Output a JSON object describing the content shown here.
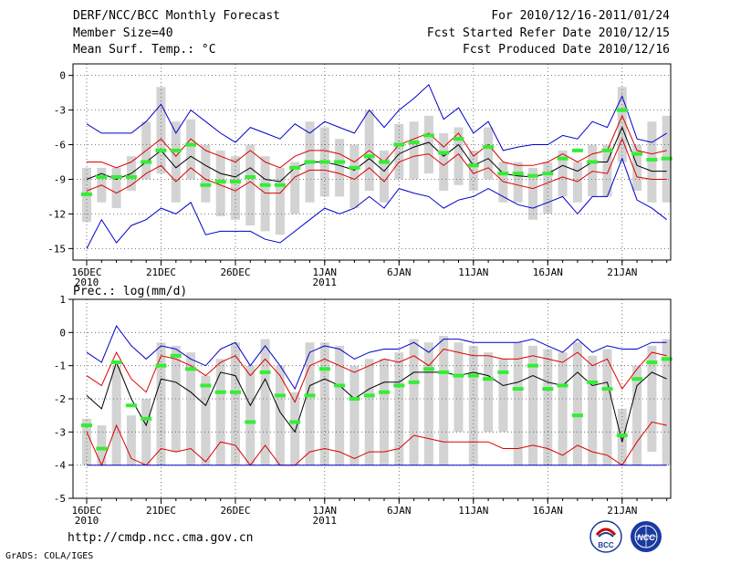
{
  "header": {
    "title": "DERF/NCC/BCC Monthly Forecast",
    "member_size": "Member Size=40",
    "variable": "Mean Surf. Temp.: °C",
    "period": "For 2010/12/16-2011/01/24",
    "fcst_started": "Fcst Started Refer Date 2010/12/15",
    "fcst_produced": "Fcst Produced Date 2010/12/16"
  },
  "footer": {
    "url": "http://cmdp.ncc.cma.gov.cn",
    "grads": "GrADS: COLA/IGES",
    "logo_bcc": "BCC",
    "logo_ncc": "NCC"
  },
  "colors": {
    "median": "#000000",
    "quartile": "#dd0000",
    "extreme": "#0000cc",
    "box": "#d3d3d3",
    "obs": "#33ee33"
  },
  "chart_data": [
    {
      "type": "line",
      "title": "Mean Surf. Temp.: °C",
      "ylabel": "°C",
      "ylim": [
        -16,
        1
      ],
      "yticks": [
        0,
        -3,
        -6,
        -9,
        -12,
        -15
      ],
      "x_tick_labels": [
        {
          "day": 1,
          "label": "16DEC",
          "sub": "2010"
        },
        {
          "day": 6,
          "label": "21DEC",
          "sub": ""
        },
        {
          "day": 11,
          "label": "26DEC",
          "sub": ""
        },
        {
          "day": 17,
          "label": "1JAN",
          "sub": "2011"
        },
        {
          "day": 22,
          "label": "6JAN",
          "sub": ""
        },
        {
          "day": 27,
          "label": "11JAN",
          "sub": ""
        },
        {
          "day": 32,
          "label": "16JAN",
          "sub": ""
        },
        {
          "day": 37,
          "label": "21JAN",
          "sub": ""
        }
      ],
      "days": 40,
      "series": [
        {
          "name": "max",
          "color": "#0000cc",
          "values": [
            -4.2,
            -5.0,
            -5.0,
            -5.0,
            -4.0,
            -2.5,
            -5.0,
            -3.0,
            -4.0,
            -5.0,
            -5.8,
            -4.5,
            -5.0,
            -5.5,
            -4.2,
            -5.0,
            -4.0,
            -4.5,
            -5.0,
            -3.0,
            -4.5,
            -3.0,
            -2.0,
            -0.8,
            -3.8,
            -2.8,
            -5.0,
            -4.0,
            -6.5,
            -6.2,
            -6.0,
            -6.0,
            -5.2,
            -5.5,
            -4.0,
            -4.5,
            -1.8,
            -5.5,
            -5.8,
            -5.0
          ]
        },
        {
          "name": "upper_quartile",
          "color": "#dd0000",
          "values": [
            -7.5,
            -7.5,
            -8.0,
            -7.5,
            -6.5,
            -5.5,
            -7.0,
            -5.5,
            -6.5,
            -7.0,
            -7.5,
            -6.5,
            -7.5,
            -8.0,
            -7.0,
            -6.5,
            -6.5,
            -6.8,
            -7.5,
            -6.5,
            -7.5,
            -6.0,
            -5.5,
            -5.0,
            -6.2,
            -5.0,
            -7.0,
            -6.0,
            -7.5,
            -7.8,
            -7.8,
            -7.5,
            -6.8,
            -7.5,
            -6.8,
            -6.5,
            -3.5,
            -6.5,
            -6.8,
            -6.5
          ]
        },
        {
          "name": "median",
          "color": "#000000",
          "values": [
            -9.0,
            -8.5,
            -9.0,
            -8.5,
            -7.5,
            -6.5,
            -8.0,
            -7.0,
            -7.8,
            -8.5,
            -8.8,
            -8.0,
            -9.0,
            -9.2,
            -8.0,
            -7.5,
            -7.5,
            -7.8,
            -8.2,
            -7.2,
            -8.3,
            -6.8,
            -6.2,
            -5.8,
            -7.0,
            -6.0,
            -7.8,
            -7.2,
            -8.5,
            -8.7,
            -8.8,
            -8.5,
            -7.8,
            -8.3,
            -7.5,
            -7.5,
            -4.5,
            -7.8,
            -8.3,
            -8.3
          ]
        },
        {
          "name": "lower_quartile",
          "color": "#dd0000",
          "values": [
            -10.0,
            -9.5,
            -10.2,
            -9.5,
            -8.5,
            -7.8,
            -9.2,
            -8.0,
            -9.0,
            -9.5,
            -10.0,
            -9.2,
            -10.2,
            -10.2,
            -8.8,
            -8.2,
            -8.2,
            -8.5,
            -9.0,
            -8.0,
            -9.2,
            -7.5,
            -7.0,
            -6.8,
            -7.8,
            -6.8,
            -8.5,
            -8.0,
            -9.2,
            -9.5,
            -9.8,
            -9.3,
            -8.8,
            -9.2,
            -8.3,
            -8.5,
            -5.5,
            -8.8,
            -9.0,
            -9.0
          ]
        },
        {
          "name": "min",
          "color": "#0000cc",
          "values": [
            -15.0,
            -12.5,
            -14.5,
            -13.0,
            -12.5,
            -11.5,
            -12.0,
            -11.0,
            -13.8,
            -13.5,
            -13.5,
            -13.5,
            -14.2,
            -14.5,
            -13.5,
            -12.5,
            -11.5,
            -12.0,
            -11.5,
            -10.5,
            -11.5,
            -9.8,
            -10.2,
            -10.5,
            -11.5,
            -10.8,
            -10.5,
            -9.8,
            -10.5,
            -11.2,
            -11.5,
            -11.0,
            -10.5,
            -12.0,
            -10.5,
            -10.5,
            -7.2,
            -10.8,
            -11.5,
            -12.5
          ]
        }
      ],
      "boxes": [
        {
          "low": -12.7,
          "high": -8.0
        },
        {
          "low": -11.0,
          "high": -8.0
        },
        {
          "low": -11.5,
          "high": -8.0
        },
        {
          "low": -10.0,
          "high": -7.0
        },
        {
          "low": -9.0,
          "high": -4.0
        },
        {
          "low": -8.5,
          "high": -1.0
        },
        {
          "low": -11.0,
          "high": -4.0
        },
        {
          "low": -9.0,
          "high": -3.8
        },
        {
          "low": -11.0,
          "high": -6.0
        },
        {
          "low": -12.2,
          "high": -6.5
        },
        {
          "low": -12.5,
          "high": -7.0
        },
        {
          "low": -13.0,
          "high": -6.0
        },
        {
          "low": -13.5,
          "high": -7.0
        },
        {
          "low": -13.8,
          "high": -8.0
        },
        {
          "low": -12.0,
          "high": -7.5
        },
        {
          "low": -11.0,
          "high": -4.0
        },
        {
          "low": -10.5,
          "high": -4.5
        },
        {
          "low": -10.5,
          "high": -5.5
        },
        {
          "low": -11.5,
          "high": -6.0
        },
        {
          "low": -10.0,
          "high": -3.0
        },
        {
          "low": -11.0,
          "high": -6.5
        },
        {
          "low": -9.0,
          "high": -4.2
        },
        {
          "low": -9.0,
          "high": -4.0
        },
        {
          "low": -8.5,
          "high": -3.5
        },
        {
          "low": -10.0,
          "high": -5.0
        },
        {
          "low": -9.5,
          "high": -4.5
        },
        {
          "low": -10.0,
          "high": -6.5
        },
        {
          "low": -9.0,
          "high": -4.5
        },
        {
          "low": -11.0,
          "high": -7.5
        },
        {
          "low": -11.0,
          "high": -7.5
        },
        {
          "low": -12.5,
          "high": -8.0
        },
        {
          "low": -12.0,
          "high": -7.5
        },
        {
          "low": -10.5,
          "high": -6.5
        },
        {
          "low": -11.0,
          "high": -7.5
        },
        {
          "low": -10.5,
          "high": -6.0
        },
        {
          "low": -10.5,
          "high": -6.0
        },
        {
          "low": -7.5,
          "high": -1.0
        },
        {
          "low": -10.0,
          "high": -6.0
        },
        {
          "low": -11.0,
          "high": -4.0
        },
        {
          "low": -11.0,
          "high": -3.5
        }
      ],
      "observed": [
        -10.3,
        -8.8,
        -8.8,
        -8.8,
        -7.5,
        -6.5,
        -6.5,
        -6.0,
        -9.5,
        -9.2,
        -9.2,
        -8.8,
        -9.5,
        -9.5,
        -8.0,
        -7.5,
        -7.5,
        -7.5,
        -8.0,
        -7.0,
        -7.5,
        -6.0,
        -5.8,
        -5.2,
        -6.7,
        -5.5,
        -7.8,
        -6.2,
        -8.5,
        -8.5,
        -8.7,
        -8.5,
        -7.2,
        -6.5,
        -7.5,
        -6.5,
        -3.0,
        -6.8,
        -7.3,
        -7.2
      ]
    },
    {
      "type": "line",
      "title": "Prec.: log(mm/d)",
      "ylabel": "log(mm/d)",
      "ylim": [
        -5,
        1
      ],
      "yticks": [
        1,
        0,
        -1,
        -2,
        -3,
        -4,
        -5
      ],
      "x_tick_labels": [
        {
          "day": 1,
          "label": "16DEC",
          "sub": "2010"
        },
        {
          "day": 6,
          "label": "21DEC",
          "sub": ""
        },
        {
          "day": 11,
          "label": "26DEC",
          "sub": ""
        },
        {
          "day": 17,
          "label": "1JAN",
          "sub": "2011"
        },
        {
          "day": 22,
          "label": "6JAN",
          "sub": ""
        },
        {
          "day": 27,
          "label": "11JAN",
          "sub": ""
        },
        {
          "day": 32,
          "label": "16JAN",
          "sub": ""
        },
        {
          "day": 37,
          "label": "21JAN",
          "sub": ""
        }
      ],
      "days": 40,
      "series": [
        {
          "name": "max",
          "color": "#0000cc",
          "values": [
            -0.6,
            -0.9,
            0.2,
            -0.4,
            -0.8,
            -0.4,
            -0.5,
            -0.8,
            -1.0,
            -0.5,
            -0.3,
            -1.0,
            -0.4,
            -1.0,
            -1.7,
            -0.6,
            -0.4,
            -0.5,
            -0.8,
            -0.6,
            -0.5,
            -0.5,
            -0.3,
            -0.6,
            -0.2,
            -0.2,
            -0.3,
            -0.3,
            -0.3,
            -0.3,
            -0.2,
            -0.4,
            -0.6,
            -0.2,
            -0.6,
            -0.4,
            -0.5,
            -0.5,
            -0.3,
            -0.3
          ]
        },
        {
          "name": "upper_quartile",
          "color": "#dd0000",
          "values": [
            -1.3,
            -1.6,
            -0.6,
            -1.4,
            -1.8,
            -0.7,
            -0.8,
            -1.0,
            -1.3,
            -0.9,
            -0.7,
            -1.3,
            -0.8,
            -1.3,
            -2.1,
            -1.0,
            -0.8,
            -1.0,
            -1.2,
            -1.0,
            -0.8,
            -0.9,
            -0.7,
            -1.0,
            -0.5,
            -0.6,
            -0.7,
            -0.7,
            -0.8,
            -0.8,
            -0.7,
            -0.8,
            -0.9,
            -0.6,
            -1.0,
            -0.8,
            -1.7,
            -1.1,
            -0.6,
            -0.7
          ]
        },
        {
          "name": "median",
          "color": "#000000",
          "values": [
            -1.9,
            -2.3,
            -0.9,
            -2.0,
            -2.8,
            -1.4,
            -1.5,
            -1.8,
            -2.2,
            -1.2,
            -1.3,
            -2.2,
            -1.4,
            -2.4,
            -3.0,
            -1.6,
            -1.4,
            -1.6,
            -2.0,
            -1.7,
            -1.5,
            -1.5,
            -1.2,
            -1.2,
            -1.2,
            -1.3,
            -1.2,
            -1.3,
            -1.6,
            -1.5,
            -1.3,
            -1.5,
            -1.6,
            -1.2,
            -1.6,
            -1.5,
            -3.3,
            -1.6,
            -1.2,
            -1.4
          ]
        },
        {
          "name": "lower_quartile",
          "color": "#dd0000",
          "values": [
            -3.0,
            -4.0,
            -2.8,
            -3.8,
            -4.0,
            -3.5,
            -3.6,
            -3.5,
            -3.9,
            -3.3,
            -3.4,
            -4.0,
            -3.4,
            -4.0,
            -4.0,
            -3.6,
            -3.5,
            -3.6,
            -3.8,
            -3.6,
            -3.6,
            -3.5,
            -3.1,
            -3.2,
            -3.3,
            -3.3,
            -3.3,
            -3.3,
            -3.5,
            -3.5,
            -3.4,
            -3.5,
            -3.7,
            -3.4,
            -3.6,
            -3.7,
            -4.0,
            -3.3,
            -2.7,
            -2.8
          ]
        },
        {
          "name": "min",
          "color": "#0000cc",
          "values": [
            -4.0,
            -4.0,
            -4.0,
            -4.0,
            -4.0,
            -4.0,
            -4.0,
            -4.0,
            -4.0,
            -4.0,
            -4.0,
            -4.0,
            -4.0,
            -4.0,
            -4.0,
            -4.0,
            -4.0,
            -4.0,
            -4.0,
            -4.0,
            -4.0,
            -4.0,
            -4.0,
            -4.0,
            -4.0,
            -4.0,
            -4.0,
            -4.0,
            -4.0,
            -4.0,
            -4.0,
            -4.0,
            -4.0,
            -4.0,
            -4.0,
            -4.0,
            -4.0,
            -4.0,
            -4.0,
            -4.0
          ]
        }
      ],
      "boxes": [
        {
          "low": -4.0,
          "high": -2.6
        },
        {
          "low": -4.0,
          "high": -2.8
        },
        {
          "low": -4.0,
          "high": -1.0
        },
        {
          "low": -4.0,
          "high": -2.5
        },
        {
          "low": -4.0,
          "high": -2.0
        },
        {
          "low": -4.0,
          "high": -0.3
        },
        {
          "low": -3.6,
          "high": -0.4
        },
        {
          "low": -4.0,
          "high": -0.6
        },
        {
          "low": -4.0,
          "high": -1.3
        },
        {
          "low": -4.0,
          "high": -0.8
        },
        {
          "low": -4.0,
          "high": -0.3
        },
        {
          "low": -4.0,
          "high": -1.0
        },
        {
          "low": -4.0,
          "high": -0.2
        },
        {
          "low": -4.0,
          "high": -1.0
        },
        {
          "low": -4.0,
          "high": -1.8
        },
        {
          "low": -4.0,
          "high": -0.3
        },
        {
          "low": -4.0,
          "high": -0.3
        },
        {
          "low": -4.0,
          "high": -0.4
        },
        {
          "low": -4.0,
          "high": -1.0
        },
        {
          "low": -4.0,
          "high": -0.8
        },
        {
          "low": -4.0,
          "high": -0.8
        },
        {
          "low": -4.0,
          "high": -0.6
        },
        {
          "low": -4.0,
          "high": -0.2
        },
        {
          "low": -4.0,
          "high": -0.3
        },
        {
          "low": -4.0,
          "high": -0.1
        },
        {
          "low": -3.0,
          "high": -0.3
        },
        {
          "low": -4.0,
          "high": -0.4
        },
        {
          "low": -3.0,
          "high": -0.6
        },
        {
          "low": -3.0,
          "high": -0.8
        },
        {
          "low": -4.0,
          "high": -0.3
        },
        {
          "low": -4.0,
          "high": -0.4
        },
        {
          "low": -4.0,
          "high": -0.5
        },
        {
          "low": -4.0,
          "high": -0.6
        },
        {
          "low": -4.0,
          "high": -0.3
        },
        {
          "low": -4.0,
          "high": -0.7
        },
        {
          "low": -4.0,
          "high": -0.5
        },
        {
          "low": -4.0,
          "high": -2.3
        },
        {
          "low": -4.0,
          "high": -1.0
        },
        {
          "low": -3.6,
          "high": -0.4
        },
        {
          "low": -4.0,
          "high": -0.2
        }
      ],
      "observed": [
        -2.8,
        -3.5,
        -0.9,
        -2.2,
        -2.6,
        -1.0,
        -0.7,
        -1.1,
        -1.6,
        -1.8,
        -1.8,
        -2.7,
        -1.2,
        -1.9,
        -2.7,
        -1.9,
        -1.1,
        -1.6,
        -2.0,
        -1.9,
        -1.8,
        -1.6,
        -1.5,
        -1.1,
        -1.2,
        -1.3,
        -1.3,
        -1.4,
        -1.2,
        -1.7,
        -1.0,
        -1.7,
        -1.6,
        -2.5,
        -1.5,
        -1.7,
        -3.1,
        -1.4,
        -0.9,
        -0.8
      ]
    }
  ]
}
